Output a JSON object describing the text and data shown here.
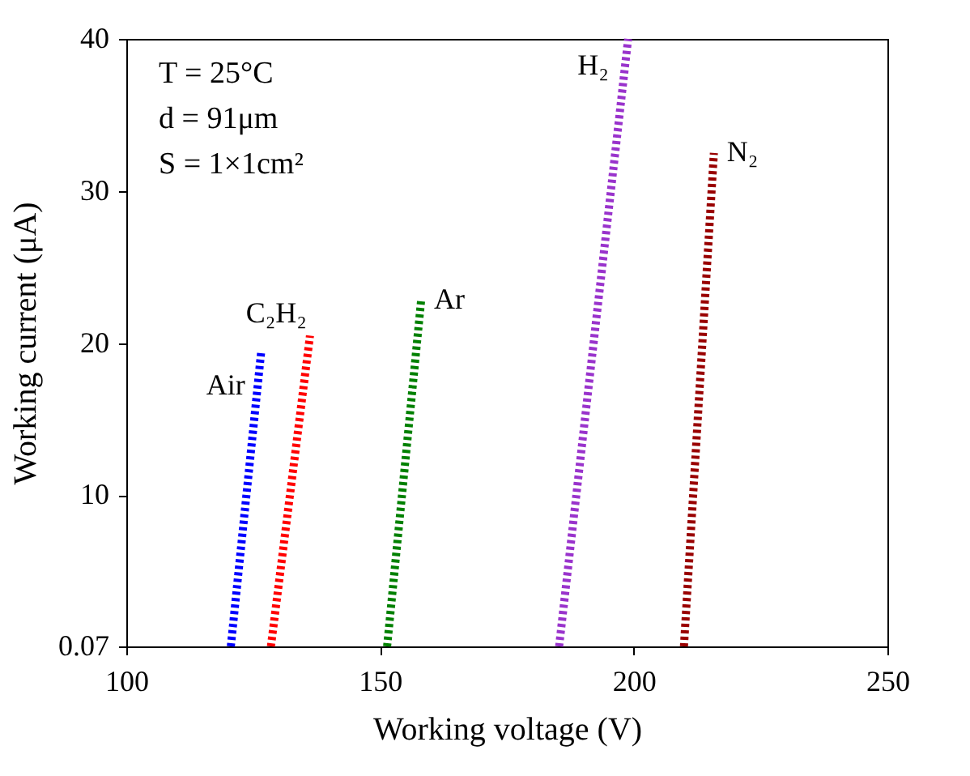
{
  "chart_data": {
    "type": "line",
    "xlabel": "Working voltage (V)",
    "ylabel": "Working current (μA)",
    "xlim": [
      100,
      250
    ],
    "xticks": [
      100,
      150,
      200,
      250
    ],
    "ylim": [
      0.07,
      40
    ],
    "yticks": [
      0.07,
      10,
      20,
      30,
      40
    ],
    "grid": false,
    "legend": false,
    "line_style": "dotted",
    "marker": "none",
    "annotations": [
      "T = 25°C",
      "d = 91μm",
      "S = 1×1cm²"
    ],
    "series": [
      {
        "name": "Air",
        "color": "#0000ff",
        "x": [
          120.6,
          126.6
        ],
        "values": [
          0.07,
          19.5
        ]
      },
      {
        "name": "C₂H₂",
        "color": "#ff0000",
        "x": [
          128.5,
          136.2
        ],
        "values": [
          0.07,
          20.5
        ]
      },
      {
        "name": "Ar",
        "color": "#008000",
        "x": [
          151.4,
          158.1
        ],
        "values": [
          0.07,
          22.8
        ]
      },
      {
        "name": "H₂",
        "color": "#9933cc",
        "x": [
          185.3,
          198.9
        ],
        "values": [
          0.07,
          40
        ]
      },
      {
        "name": "N₂",
        "color": "#990000",
        "x": [
          209.9,
          215.8
        ],
        "values": [
          0.07,
          32.5
        ]
      }
    ]
  }
}
